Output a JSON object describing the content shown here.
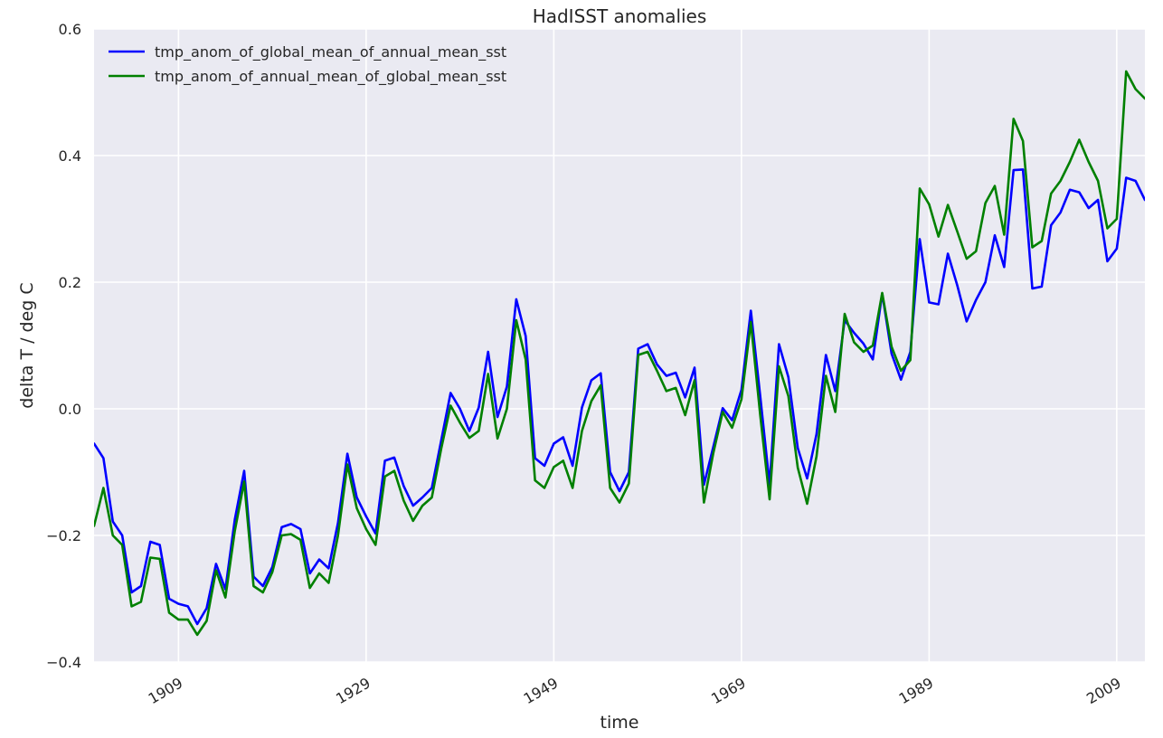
{
  "chart_data": {
    "type": "line",
    "title": "HadISST anomalies",
    "xlabel": "time",
    "ylabel": "delta T / deg C",
    "xlim": [
      1900,
      2012
    ],
    "ylim": [
      -0.4,
      0.6
    ],
    "x_ticks": [
      1909,
      1929,
      1949,
      1969,
      1989,
      2009
    ],
    "y_ticks": [
      {
        "value": -0.4,
        "label": "−0.4"
      },
      {
        "value": -0.2,
        "label": "−0.2"
      },
      {
        "value": 0.0,
        "label": "0.0"
      },
      {
        "value": 0.2,
        "label": "0.2"
      },
      {
        "value": 0.4,
        "label": "0.4"
      },
      {
        "value": 0.6,
        "label": "0.6"
      }
    ],
    "grid": true,
    "legend_position": "top-left",
    "x": [
      1900,
      1901,
      1902,
      1903,
      1904,
      1905,
      1906,
      1907,
      1908,
      1909,
      1910,
      1911,
      1912,
      1913,
      1914,
      1915,
      1916,
      1917,
      1918,
      1919,
      1920,
      1921,
      1922,
      1923,
      1924,
      1925,
      1926,
      1927,
      1928,
      1929,
      1930,
      1931,
      1932,
      1933,
      1934,
      1935,
      1936,
      1937,
      1938,
      1939,
      1940,
      1941,
      1942,
      1943,
      1944,
      1945,
      1946,
      1947,
      1948,
      1949,
      1950,
      1951,
      1952,
      1953,
      1954,
      1955,
      1956,
      1957,
      1958,
      1959,
      1960,
      1961,
      1962,
      1963,
      1964,
      1965,
      1966,
      1967,
      1968,
      1969,
      1970,
      1971,
      1972,
      1973,
      1974,
      1975,
      1976,
      1977,
      1978,
      1979,
      1980,
      1981,
      1982,
      1983,
      1984,
      1985,
      1986,
      1987,
      1988,
      1989,
      1990,
      1991,
      1992,
      1993,
      1994,
      1995,
      1996,
      1997,
      1998,
      1999,
      2000,
      2001,
      2002,
      2003,
      2004,
      2005,
      2006,
      2007,
      2008,
      2009,
      2010,
      2011,
      2012
    ],
    "series": [
      {
        "name": "tmp_anom_of_global_mean_of_annual_mean_sst",
        "color": "#0000ff",
        "values": [
          -0.055,
          -0.078,
          -0.178,
          -0.2,
          -0.29,
          -0.28,
          -0.21,
          -0.215,
          -0.3,
          -0.308,
          -0.312,
          -0.34,
          -0.315,
          -0.245,
          -0.285,
          -0.175,
          -0.098,
          -0.265,
          -0.28,
          -0.25,
          -0.187,
          -0.182,
          -0.19,
          -0.26,
          -0.238,
          -0.252,
          -0.18,
          -0.071,
          -0.14,
          -0.17,
          -0.197,
          -0.082,
          -0.077,
          -0.122,
          -0.153,
          -0.14,
          -0.125,
          -0.05,
          0.025,
          0.0,
          -0.035,
          0.002,
          0.09,
          -0.013,
          0.035,
          0.173,
          0.115,
          -0.078,
          -0.09,
          -0.055,
          -0.045,
          -0.09,
          0.002,
          0.045,
          0.056,
          -0.1,
          -0.13,
          -0.1,
          0.095,
          0.102,
          0.07,
          0.052,
          0.057,
          0.018,
          0.065,
          -0.12,
          -0.06,
          0.001,
          -0.018,
          0.03,
          0.155,
          0.02,
          -0.12,
          0.102,
          0.05,
          -0.062,
          -0.11,
          -0.04,
          0.085,
          0.028,
          0.14,
          0.12,
          0.103,
          0.078,
          0.182,
          0.087,
          0.046,
          0.09,
          0.268,
          0.168,
          0.165,
          0.245,
          0.195,
          0.138,
          0.172,
          0.2,
          0.274,
          0.224,
          0.377,
          0.378,
          0.19,
          0.193,
          0.29,
          0.31,
          0.346,
          0.342,
          0.317,
          0.33,
          0.233,
          0.253,
          0.365,
          0.36,
          0.33
        ]
      },
      {
        "name": "tmp_anom_of_annual_mean_of_global_mean_sst",
        "color": "#008000",
        "values": [
          -0.185,
          -0.125,
          -0.2,
          -0.215,
          -0.312,
          -0.305,
          -0.235,
          -0.237,
          -0.322,
          -0.333,
          -0.333,
          -0.357,
          -0.335,
          -0.255,
          -0.298,
          -0.193,
          -0.115,
          -0.28,
          -0.29,
          -0.258,
          -0.2,
          -0.198,
          -0.207,
          -0.283,
          -0.26,
          -0.275,
          -0.2,
          -0.088,
          -0.157,
          -0.19,
          -0.215,
          -0.107,
          -0.098,
          -0.145,
          -0.177,
          -0.153,
          -0.14,
          -0.063,
          0.005,
          -0.022,
          -0.046,
          -0.035,
          0.055,
          -0.047,
          0.0,
          0.14,
          0.078,
          -0.113,
          -0.125,
          -0.092,
          -0.082,
          -0.125,
          -0.035,
          0.012,
          0.037,
          -0.125,
          -0.148,
          -0.118,
          0.085,
          0.09,
          0.06,
          0.028,
          0.033,
          -0.01,
          0.045,
          -0.148,
          -0.07,
          -0.005,
          -0.03,
          0.015,
          0.137,
          -0.01,
          -0.143,
          0.067,
          0.02,
          -0.093,
          -0.15,
          -0.075,
          0.052,
          -0.005,
          0.15,
          0.105,
          0.09,
          0.1,
          0.183,
          0.098,
          0.06,
          0.077,
          0.348,
          0.323,
          0.272,
          0.322,
          0.28,
          0.237,
          0.249,
          0.325,
          0.352,
          0.275,
          0.458,
          0.423,
          0.255,
          0.265,
          0.34,
          0.36,
          0.39,
          0.425,
          0.39,
          0.36,
          0.285,
          0.3,
          0.533,
          0.505,
          0.49
        ]
      }
    ]
  }
}
